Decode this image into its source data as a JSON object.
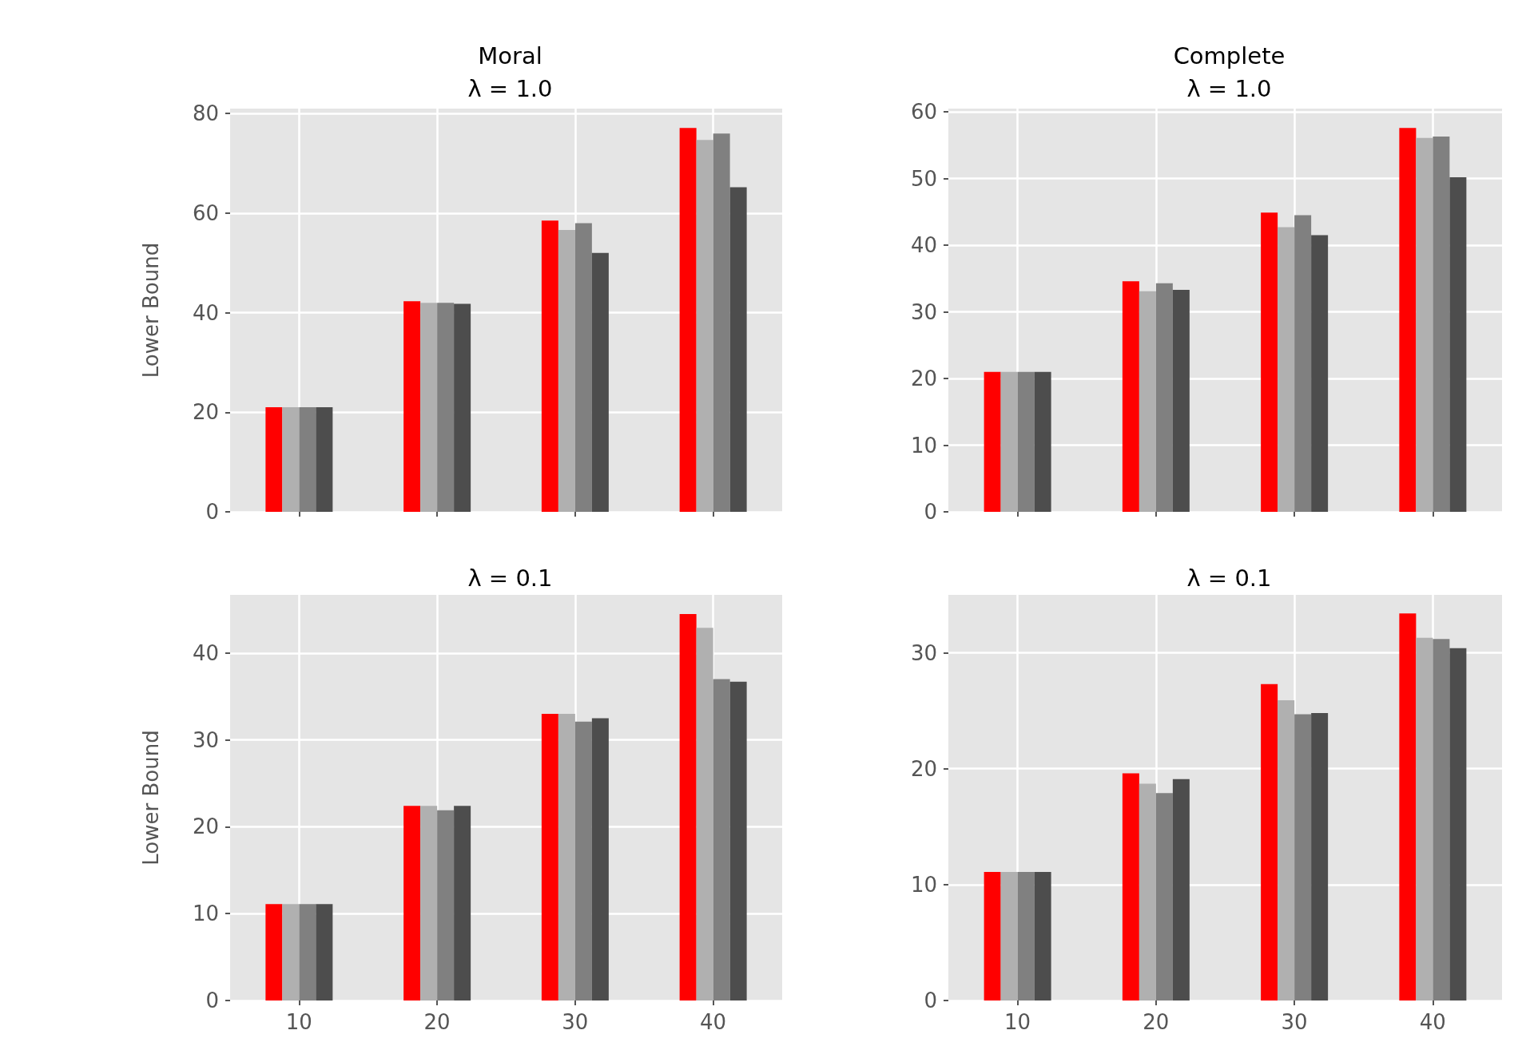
{
  "chart_data": [
    {
      "type": "bar",
      "title": "Moral\nλ = 1.0",
      "ylabel": "Lower Bound",
      "categories": [
        "10",
        "20",
        "30",
        "40"
      ],
      "ylim": [
        0,
        81
      ],
      "yticks": [
        0,
        20,
        40,
        60,
        80
      ],
      "grid": true,
      "tick_labels": "y",
      "series": [
        {
          "color": "#ff0000",
          "values": [
            21,
            42.3,
            58.5,
            77.1
          ]
        },
        {
          "color": "#b0b0b0",
          "values": [
            21,
            42.0,
            56.6,
            74.7
          ]
        },
        {
          "color": "#808080",
          "values": [
            21,
            42.0,
            58.0,
            76.0
          ]
        },
        {
          "color": "#4d4d4d",
          "values": [
            21,
            41.8,
            52.0,
            65.2
          ]
        }
      ]
    },
    {
      "type": "bar",
      "title": "Complete\nλ = 1.0",
      "categories": [
        "10",
        "20",
        "30",
        "40"
      ],
      "ylim": [
        0,
        60.5
      ],
      "yticks": [
        0,
        10,
        20,
        30,
        40,
        50,
        60
      ],
      "grid": true,
      "tick_labels": "y",
      "series": [
        {
          "color": "#ff0000",
          "values": [
            21,
            34.6,
            44.9,
            57.6
          ]
        },
        {
          "color": "#b0b0b0",
          "values": [
            21,
            33.1,
            42.7,
            56.1
          ]
        },
        {
          "color": "#808080",
          "values": [
            21,
            34.3,
            44.5,
            56.3
          ]
        },
        {
          "color": "#4d4d4d",
          "values": [
            21,
            33.3,
            41.5,
            50.2
          ]
        }
      ]
    },
    {
      "type": "bar",
      "title": "λ = 0.1",
      "ylabel": "Lower Bound",
      "categories": [
        "10",
        "20",
        "30",
        "40"
      ],
      "ylim": [
        0,
        46.7
      ],
      "yticks": [
        0,
        10,
        20,
        30,
        40
      ],
      "grid": true,
      "series": [
        {
          "color": "#ff0000",
          "values": [
            11.1,
            22.4,
            33.0,
            44.5
          ]
        },
        {
          "color": "#b0b0b0",
          "values": [
            11.1,
            22.4,
            33.0,
            42.9
          ]
        },
        {
          "color": "#808080",
          "values": [
            11.1,
            21.9,
            32.1,
            37.0
          ]
        },
        {
          "color": "#4d4d4d",
          "values": [
            11.1,
            22.4,
            32.5,
            36.7
          ]
        }
      ]
    },
    {
      "type": "bar",
      "title": "λ = 0.1",
      "categories": [
        "10",
        "20",
        "30",
        "40"
      ],
      "ylim": [
        0,
        35
      ],
      "yticks": [
        0,
        10,
        20,
        30
      ],
      "grid": true,
      "series": [
        {
          "color": "#ff0000",
          "values": [
            11.1,
            19.6,
            27.3,
            33.4
          ]
        },
        {
          "color": "#b0b0b0",
          "values": [
            11.1,
            18.7,
            25.9,
            31.3
          ]
        },
        {
          "color": "#808080",
          "values": [
            11.1,
            17.9,
            24.7,
            31.2
          ]
        },
        {
          "color": "#4d4d4d",
          "values": [
            11.1,
            19.1,
            24.8,
            30.4
          ]
        }
      ]
    }
  ]
}
